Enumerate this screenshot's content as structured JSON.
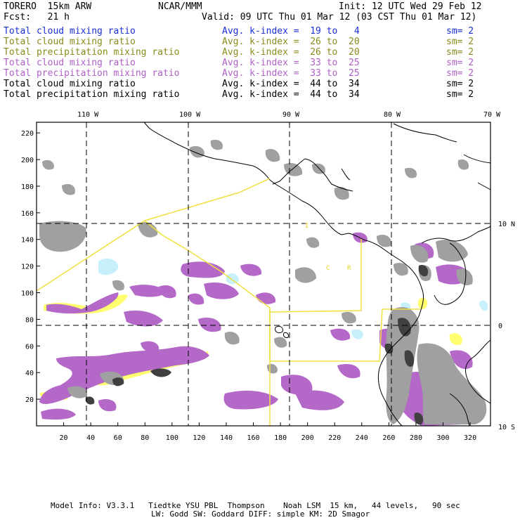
{
  "header": {
    "model": "TORERO  15km ARW",
    "center": "NCAR/MMM",
    "init": "Init: 12 UTC Wed 29 Feb 12",
    "fcst": "Fcst:   21 h",
    "valid": "Valid: 09 UTC Thu 01 Mar 12 (03 CST Thu 01 Mar 12)"
  },
  "legend": [
    {
      "field": "Total cloud mixing ratio",
      "kindex": "Avg. k-index =  19 to   4",
      "sm": "sm= 2",
      "color": "#1a2fd4"
    },
    {
      "field": "Total cloud mixing ratio",
      "kindex": "Avg. k-index =  26 to  20",
      "sm": "sm= 2",
      "color": "#8a8a1a"
    },
    {
      "field": "Total precipitation mixing ratio",
      "kindex": "Avg. k-index =  26 to  20",
      "sm": "sm= 2",
      "color": "#8a8a1a"
    },
    {
      "field": "Total cloud mixing ratio",
      "kindex": "Avg. k-index =  33 to  25",
      "sm": "sm= 2",
      "color": "#b060c8"
    },
    {
      "field": "Total precipitation mixing ratio",
      "kindex": "Avg. k-index =  33 to  25",
      "sm": "sm= 2",
      "color": "#b060c8"
    },
    {
      "field": "Total cloud mixing ratio",
      "kindex": "Avg. k-index =  44 to  34",
      "sm": "sm= 2",
      "color": "#000000"
    },
    {
      "field": "Total precipitation mixing ratio",
      "kindex": "Avg. k-index =  44 to  34",
      "sm": "sm= 2",
      "color": "#000000"
    }
  ],
  "axes": {
    "top_lon": [
      "110 W",
      "100 W",
      "90 W",
      "80 W",
      "70 W"
    ],
    "right_lat": [
      "10 N",
      "0",
      "10 S"
    ],
    "left_grid": [
      "220",
      "200",
      "180",
      "160",
      "140",
      "120",
      "100",
      "80",
      "60",
      "40",
      "20"
    ],
    "bottom_grid": [
      "20",
      "40",
      "60",
      "80",
      "100",
      "120",
      "140",
      "160",
      "180",
      "200",
      "220",
      "240",
      "260",
      "280",
      "300",
      "320"
    ],
    "x_range": [
      0,
      335
    ],
    "y_range": [
      0,
      228
    ]
  },
  "map_labels": [
    {
      "text": "I",
      "x": 132,
      "y": 150
    },
    {
      "text": "C",
      "x": 143,
      "y": 119
    },
    {
      "text": "R",
      "x": 152,
      "y": 119
    }
  ],
  "colors": {
    "light_blue": "#c8f0fc",
    "yellow": "#ffff70",
    "purple": "#b468c8",
    "gray": "#a0a0a0",
    "dark": "#404040",
    "domain_line": "#f0e040"
  },
  "footer": {
    "line1": "Model Info: V3.3.1   Tiedtke YSU PBL  Thompson    Noah LSM  15 km,   44 levels,   90 sec",
    "line2": "LW: Godd SW: Goddard DIFF: simple KM: 2D Smagor"
  }
}
